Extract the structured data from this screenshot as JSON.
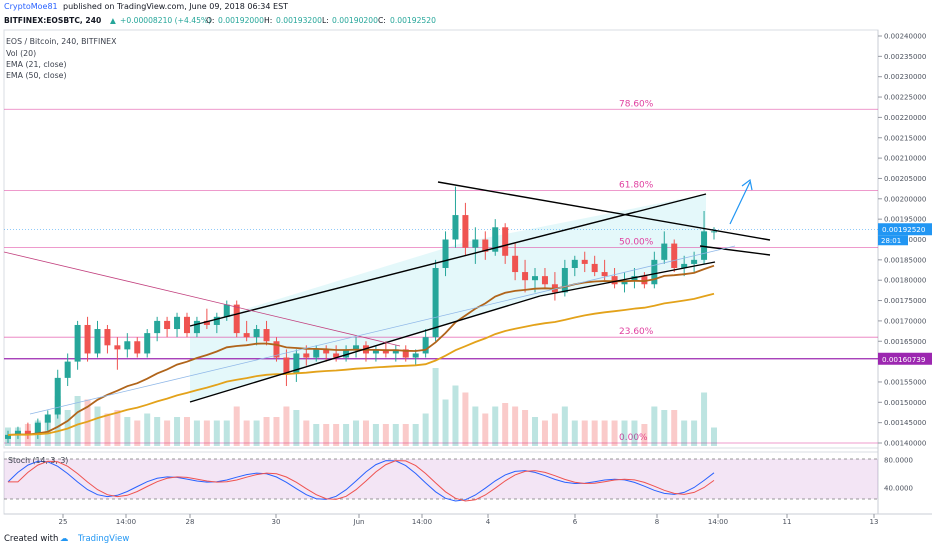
{
  "header": {
    "author": "CryptoMoe81",
    "published_text": "published on TradingView.com, June 09, 2018 06:34 EST",
    "symbol": "BITFINEX:EOSBTC, 240",
    "change": "+0.00008210 (+4.45%)",
    "o_label": "O:",
    "o_value": "0.00192000",
    "h_label": "H:",
    "h_value": "0.00193200",
    "l_label": "L:",
    "l_value": "0.00190200",
    "c_label": "C:",
    "c_value": "0.00192520"
  },
  "legend": {
    "title": "EOS / Bitcoin, 240, BITFINEX",
    "vol": "Vol (20)",
    "ema21": "EMA (21, close)",
    "ema50": "EMA (50, close)"
  },
  "stoch_label": "Stoch (14, 3, 3)",
  "footer": {
    "created_with": "Created with",
    "brand": "TradingView"
  },
  "fib_levels": [
    {
      "label": "78.60%",
      "price": 0.00222
    },
    {
      "label": "61.80%",
      "price": 0.00202
    },
    {
      "label": "50.00%",
      "price": 0.00188
    },
    {
      "label": "23.60%",
      "price": 0.00166
    },
    {
      "label": "0.00%",
      "price": 0.0014
    }
  ],
  "price_badges": {
    "current": "0.00192520",
    "countdown": "28:01",
    "support": "0.00160739"
  },
  "colors": {
    "up": "#26a69a",
    "down": "#ef5350",
    "fib": "#e040a0",
    "support": "#9c27b0",
    "ema21": "#b0641a",
    "ema50": "#e3a21a",
    "stoch_k": "#2962ff",
    "stoch_d": "#ef5350",
    "arrow": "#2196f3"
  },
  "chart_data": {
    "type": "candlestick",
    "y_axis_ticks": [
      "0.00240000",
      "0.00235000",
      "0.00230000",
      "0.00225000",
      "0.00220000",
      "0.00215000",
      "0.00210000",
      "0.00205000",
      "0.00200000",
      "0.00195000",
      "0.00190000",
      "0.00185000",
      "0.00180000",
      "0.00175000",
      "0.00170000",
      "0.00165000",
      "0.00160000",
      "0.00155000",
      "0.00150000",
      "0.00145000",
      "0.00140000"
    ],
    "x_axis_ticks": [
      "25",
      "14:00",
      "28",
      "30",
      "Jun",
      "14:00",
      "4",
      "6",
      "8",
      "14:00",
      "11",
      "13"
    ],
    "stoch_ticks": [
      "80.0000",
      "40.0000"
    ],
    "candles_ohlc": [
      [
        0.00141,
        0.00143,
        0.0014,
        0.00142
      ],
      [
        0.00142,
        0.00144,
        0.00141,
        0.00143
      ],
      [
        0.00143,
        0.00145,
        0.00141,
        0.00142
      ],
      [
        0.00142,
        0.00146,
        0.00141,
        0.00145
      ],
      [
        0.00145,
        0.00148,
        0.00143,
        0.00147
      ],
      [
        0.00147,
        0.00158,
        0.00146,
        0.00156
      ],
      [
        0.00156,
        0.00162,
        0.00154,
        0.0016
      ],
      [
        0.0016,
        0.0017,
        0.00158,
        0.00169
      ],
      [
        0.00169,
        0.00171,
        0.0016,
        0.00162
      ],
      [
        0.00162,
        0.0017,
        0.00161,
        0.00168
      ],
      [
        0.00168,
        0.00169,
        0.00162,
        0.00164
      ],
      [
        0.00164,
        0.00166,
        0.00158,
        0.00163
      ],
      [
        0.00163,
        0.00167,
        0.00161,
        0.00165
      ],
      [
        0.00165,
        0.00166,
        0.00161,
        0.00162
      ],
      [
        0.00162,
        0.00168,
        0.00161,
        0.00167
      ],
      [
        0.00167,
        0.00171,
        0.00165,
        0.0017
      ],
      [
        0.0017,
        0.00171,
        0.00166,
        0.00168
      ],
      [
        0.00168,
        0.00172,
        0.00166,
        0.00171
      ],
      [
        0.00171,
        0.00172,
        0.00166,
        0.00167
      ],
      [
        0.00167,
        0.00171,
        0.00166,
        0.0017
      ],
      [
        0.0017,
        0.00173,
        0.00168,
        0.00169
      ],
      [
        0.00169,
        0.00172,
        0.00167,
        0.00171
      ],
      [
        0.00171,
        0.00175,
        0.0017,
        0.00174
      ],
      [
        0.00174,
        0.00175,
        0.00166,
        0.00167
      ],
      [
        0.00167,
        0.0017,
        0.00165,
        0.00166
      ],
      [
        0.00166,
        0.00169,
        0.00164,
        0.00168
      ],
      [
        0.00168,
        0.0017,
        0.00164,
        0.00165
      ],
      [
        0.00165,
        0.00166,
        0.0016,
        0.00161
      ],
      [
        0.00161,
        0.00163,
        0.00154,
        0.00157
      ],
      [
        0.00157,
        0.00163,
        0.00155,
        0.00162
      ],
      [
        0.00162,
        0.00164,
        0.00159,
        0.00161
      ],
      [
        0.00161,
        0.00164,
        0.0016,
        0.00163
      ],
      [
        0.00163,
        0.00164,
        0.0016,
        0.00162
      ],
      [
        0.00162,
        0.00164,
        0.0016,
        0.00161
      ],
      [
        0.00161,
        0.00164,
        0.0016,
        0.00163
      ],
      [
        0.00163,
        0.00166,
        0.00161,
        0.00164
      ],
      [
        0.00164,
        0.00165,
        0.0016,
        0.00162
      ],
      [
        0.00162,
        0.00164,
        0.0016,
        0.00163
      ],
      [
        0.00163,
        0.00165,
        0.00161,
        0.00162
      ],
      [
        0.00162,
        0.00164,
        0.0016,
        0.00163
      ],
      [
        0.00163,
        0.00164,
        0.0016,
        0.00161
      ],
      [
        0.00161,
        0.00163,
        0.00159,
        0.00162
      ],
      [
        0.00162,
        0.00168,
        0.00161,
        0.00166
      ],
      [
        0.00166,
        0.00185,
        0.00165,
        0.00183
      ],
      [
        0.00183,
        0.00192,
        0.00181,
        0.0019
      ],
      [
        0.0019,
        0.00203,
        0.00188,
        0.00196
      ],
      [
        0.00196,
        0.00199,
        0.00186,
        0.00188
      ],
      [
        0.00188,
        0.00193,
        0.00184,
        0.0019
      ],
      [
        0.0019,
        0.00192,
        0.00185,
        0.00187
      ],
      [
        0.00187,
        0.00195,
        0.00186,
        0.00193
      ],
      [
        0.00193,
        0.00194,
        0.00184,
        0.00186
      ],
      [
        0.00186,
        0.00189,
        0.0018,
        0.00182
      ],
      [
        0.00182,
        0.00185,
        0.00177,
        0.0018
      ],
      [
        0.0018,
        0.00183,
        0.00177,
        0.00181
      ],
      [
        0.00181,
        0.00183,
        0.00178,
        0.00179
      ],
      [
        0.00179,
        0.00182,
        0.00175,
        0.00177
      ],
      [
        0.00177,
        0.00185,
        0.00176,
        0.00183
      ],
      [
        0.00183,
        0.00186,
        0.00181,
        0.00185
      ],
      [
        0.00185,
        0.00187,
        0.00182,
        0.00184
      ],
      [
        0.00184,
        0.00186,
        0.00181,
        0.00182
      ],
      [
        0.00182,
        0.00185,
        0.0018,
        0.00181
      ],
      [
        0.00181,
        0.00183,
        0.00178,
        0.00179
      ],
      [
        0.00179,
        0.00182,
        0.00177,
        0.0018
      ],
      [
        0.0018,
        0.00183,
        0.00178,
        0.00181
      ],
      [
        0.00181,
        0.00182,
        0.00178,
        0.00179
      ],
      [
        0.00179,
        0.00187,
        0.00178,
        0.00185
      ],
      [
        0.00185,
        0.00192,
        0.00184,
        0.00189
      ],
      [
        0.00189,
        0.0019,
        0.00182,
        0.00183
      ],
      [
        0.00183,
        0.00186,
        0.00181,
        0.00184
      ],
      [
        0.00184,
        0.00187,
        0.00182,
        0.00185
      ],
      [
        0.00185,
        0.00197,
        0.00184,
        0.00192
      ],
      [
        0.00192,
        0.00193,
        0.0019,
        0.00192
      ]
    ]
  }
}
